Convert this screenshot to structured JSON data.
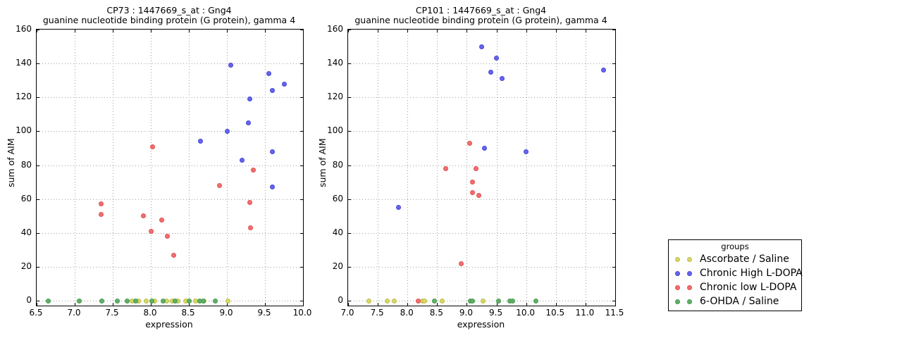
{
  "figure": {
    "background": "#ffffff",
    "grid_color": "#a0a0a0"
  },
  "legend": {
    "title": "groups",
    "entries": [
      {
        "label": "Ascorbate / Saline",
        "color": "#d8d868",
        "edge": "#bcbc46"
      },
      {
        "label": "Chronic High L-DOPA",
        "color": "#6565ef",
        "edge": "#4747d2"
      },
      {
        "label": "Chronic low L-DOPA",
        "color": "#f36f6f",
        "edge": "#e04f4f"
      },
      {
        "label": "6-OHDA / Saline",
        "color": "#61b067",
        "edge": "#449a4d"
      }
    ]
  },
  "chart_data": [
    {
      "type": "scatter",
      "title": "CP73 : 1447669_s_at : Gng4",
      "subtitle": "guanine nucleotide binding protein (G protein), gamma 4",
      "xlabel": "expression",
      "ylabel": "sum of AIM",
      "xlim": [
        6.5,
        10.0
      ],
      "ylim": [
        0,
        160
      ],
      "xticks": [
        6.5,
        7.0,
        7.5,
        8.0,
        8.5,
        9.0,
        9.5,
        10.0
      ],
      "yticks": [
        0,
        20,
        40,
        60,
        80,
        100,
        120,
        140,
        160
      ],
      "grid": true,
      "series": [
        {
          "name": "Ascorbate / Saline",
          "color": "#d8d868",
          "edge": "#bcbc46",
          "points": [
            [
              7.75,
              0
            ],
            [
              7.84,
              0
            ],
            [
              7.94,
              0
            ],
            [
              8.05,
              0
            ],
            [
              8.21,
              0
            ],
            [
              8.28,
              0
            ],
            [
              8.36,
              0
            ],
            [
              8.46,
              0
            ],
            [
              8.59,
              0
            ],
            [
              8.7,
              0
            ],
            [
              9.01,
              0
            ]
          ]
        },
        {
          "name": "Chronic High L-DOPA",
          "color": "#6565ef",
          "edge": "#4747d2",
          "points": [
            [
              8.65,
              94
            ],
            [
              9.0,
              100
            ],
            [
              9.05,
              139
            ],
            [
              9.2,
              83
            ],
            [
              9.28,
              105
            ],
            [
              9.3,
              119
            ],
            [
              9.55,
              134
            ],
            [
              9.6,
              124
            ],
            [
              9.6,
              88
            ],
            [
              9.6,
              67
            ],
            [
              9.75,
              128
            ]
          ]
        },
        {
          "name": "Chronic low L-DOPA",
          "color": "#f36f6f",
          "edge": "#e04f4f",
          "points": [
            [
              7.35,
              57
            ],
            [
              7.35,
              51
            ],
            [
              7.9,
              50
            ],
            [
              8.02,
              91
            ],
            [
              8.0,
              41
            ],
            [
              8.14,
              47.5
            ],
            [
              8.22,
              38
            ],
            [
              8.3,
              27
            ],
            [
              8.9,
              68
            ],
            [
              9.3,
              58
            ],
            [
              9.31,
              43
            ],
            [
              9.35,
              77
            ]
          ]
        },
        {
          "name": "6-OHDA / Saline",
          "color": "#61b067",
          "edge": "#449a4d",
          "points": [
            [
              6.65,
              0
            ],
            [
              7.06,
              0
            ],
            [
              7.36,
              0
            ],
            [
              7.56,
              0
            ],
            [
              7.69,
              0
            ],
            [
              7.8,
              0
            ],
            [
              8.01,
              0
            ],
            [
              8.16,
              0
            ],
            [
              8.32,
              0
            ],
            [
              8.5,
              0
            ],
            [
              8.64,
              0
            ],
            [
              8.69,
              0
            ],
            [
              8.85,
              0
            ]
          ]
        }
      ]
    },
    {
      "type": "scatter",
      "title": "CP101 : 1447669_s_at : Gng4",
      "subtitle": "guanine nucleotide binding protein (G protein), gamma 4",
      "xlabel": "expression",
      "ylabel": "sum of AIM",
      "xlim": [
        7.0,
        11.5
      ],
      "ylim": [
        0,
        160
      ],
      "xticks": [
        7.0,
        7.5,
        8.0,
        8.5,
        9.0,
        9.5,
        10.0,
        10.5,
        11.0,
        11.5
      ],
      "yticks": [
        0,
        20,
        40,
        60,
        80,
        100,
        120,
        140,
        160
      ],
      "grid": true,
      "series": [
        {
          "name": "Ascorbate / Saline",
          "color": "#d8d868",
          "edge": "#bcbc46",
          "points": [
            [
              7.35,
              0
            ],
            [
              7.66,
              0
            ],
            [
              7.78,
              0
            ],
            [
              8.25,
              0
            ],
            [
              8.29,
              0
            ],
            [
              8.58,
              0
            ],
            [
              9.27,
              0
            ]
          ]
        },
        {
          "name": "Chronic High L-DOPA",
          "color": "#6565ef",
          "edge": "#4747d2",
          "points": [
            [
              7.85,
              55
            ],
            [
              9.25,
              150
            ],
            [
              9.3,
              90
            ],
            [
              9.4,
              135
            ],
            [
              9.5,
              143
            ],
            [
              9.6,
              131
            ],
            [
              10.0,
              88
            ],
            [
              11.3,
              136
            ]
          ]
        },
        {
          "name": "Chronic low L-DOPA",
          "color": "#f36f6f",
          "edge": "#e04f4f",
          "points": [
            [
              8.18,
              0
            ],
            [
              8.65,
              78
            ],
            [
              8.9,
              22
            ],
            [
              9.05,
              93
            ],
            [
              9.1,
              70
            ],
            [
              9.1,
              64
            ],
            [
              9.15,
              78
            ],
            [
              9.2,
              62
            ]
          ]
        },
        {
          "name": "6-OHDA / Saline",
          "color": "#61b067",
          "edge": "#449a4d",
          "points": [
            [
              8.46,
              0
            ],
            [
              9.06,
              0
            ],
            [
              9.1,
              0
            ],
            [
              9.53,
              0
            ],
            [
              9.72,
              0
            ],
            [
              9.77,
              0
            ],
            [
              10.17,
              0
            ]
          ]
        }
      ]
    }
  ]
}
